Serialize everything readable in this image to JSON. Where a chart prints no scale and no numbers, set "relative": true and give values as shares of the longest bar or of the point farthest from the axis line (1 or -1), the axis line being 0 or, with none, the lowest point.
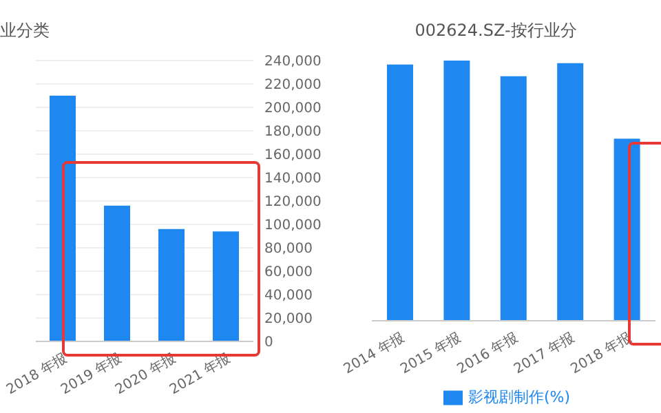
{
  "chart_data": [
    {
      "type": "bar",
      "title": "业分类",
      "categories": [
        "2018 年报",
        "2019 年报",
        "2020 年报",
        "2021 年报"
      ],
      "series": [
        {
          "color": "#1e88f0",
          "values": [
            210000,
            116000,
            96000,
            94000
          ]
        }
      ],
      "ylim": [
        0,
        240000
      ],
      "yticks": [
        {
          "value": 0,
          "label": "0"
        },
        {
          "value": 20000,
          "label": "20,000"
        },
        {
          "value": 40000,
          "label": "40,000"
        },
        {
          "value": 60000,
          "label": "60,000"
        },
        {
          "value": 80000,
          "label": "80,000"
        },
        {
          "value": 100000,
          "label": "100,000"
        },
        {
          "value": 120000,
          "label": "120,000"
        },
        {
          "value": 140000,
          "label": "140,000"
        },
        {
          "value": 160000,
          "label": "160,000"
        },
        {
          "value": 180000,
          "label": "180,000"
        },
        {
          "value": 200000,
          "label": "200,000"
        },
        {
          "value": 220000,
          "label": "220,000"
        },
        {
          "value": 240000,
          "label": "240,000"
        }
      ],
      "grid": "y",
      "legend": false
    },
    {
      "type": "bar",
      "title": "002624.SZ-按行业分",
      "categories": [
        "2014 年报",
        "2015 年报",
        "2016 年报",
        "2017 年报",
        "2018 年报"
      ],
      "series": [
        {
          "name": "影视剧制作(%)",
          "color": "#1e88f0",
          "values": [
            0.985,
            1,
            0.94,
            0.99,
            0.7
          ]
        }
      ],
      "relative": true,
      "legend": "bottom"
    }
  ]
}
